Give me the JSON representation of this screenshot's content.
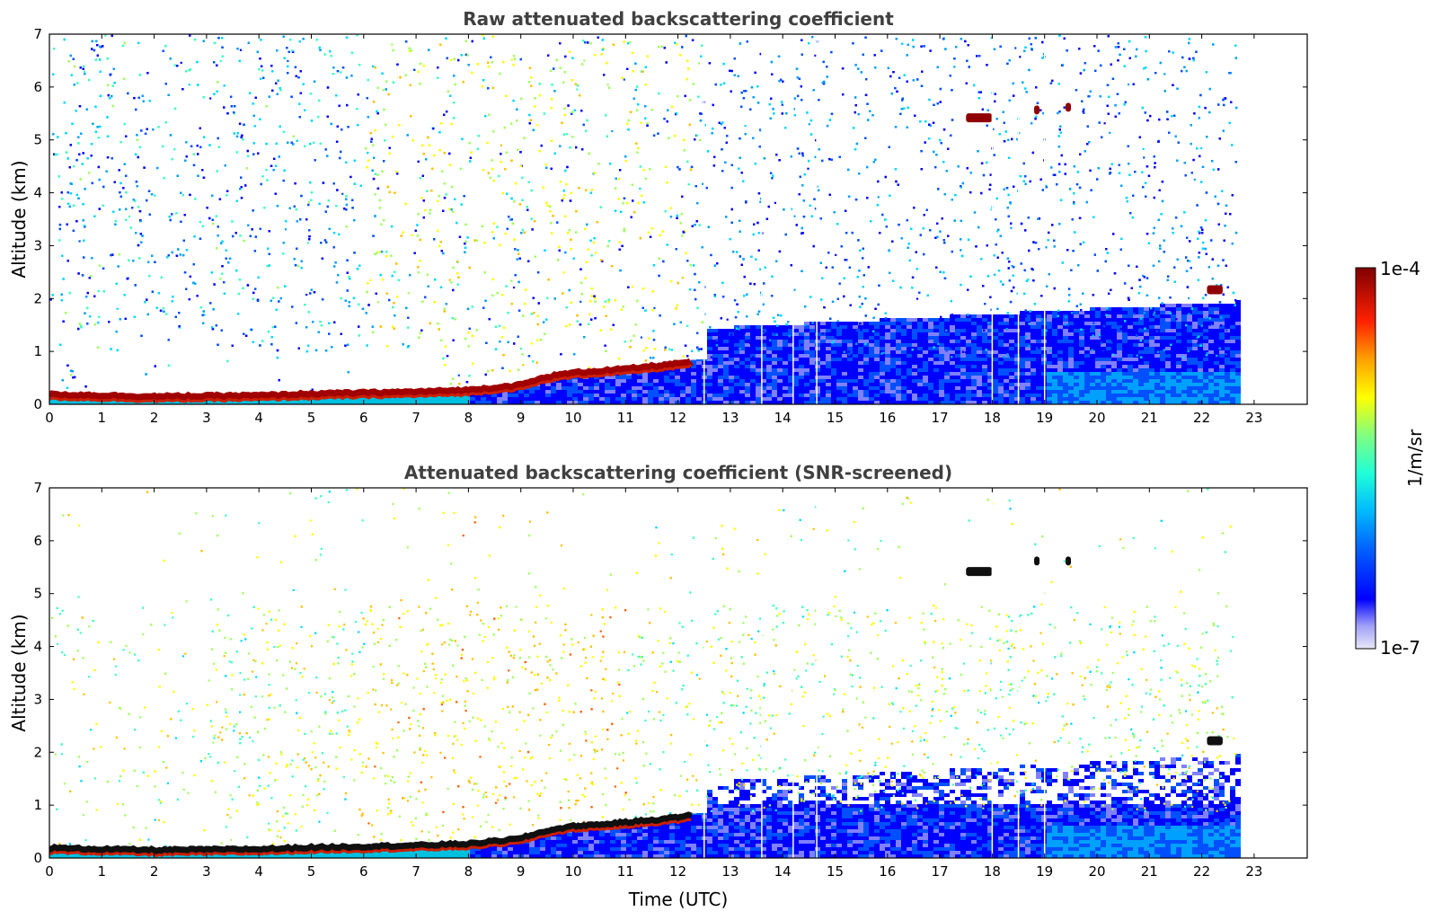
{
  "chart_data": [
    {
      "type": "heatmap",
      "title": "Raw attenuated backscattering coefficient",
      "xlabel": "",
      "ylabel": "Altitude (km)",
      "xlim": [
        0,
        24
      ],
      "ylim": [
        0,
        7
      ],
      "xticks": [
        0,
        1,
        2,
        3,
        4,
        5,
        6,
        7,
        8,
        9,
        10,
        11,
        12,
        13,
        14,
        15,
        16,
        17,
        18,
        19,
        20,
        21,
        22,
        23
      ],
      "yticks": [
        0,
        1,
        2,
        3,
        4,
        5,
        6,
        7
      ],
      "data_end_time": 22.65,
      "boundary_layer_top_km": [
        [
          0,
          0.17
        ],
        [
          1,
          0.15
        ],
        [
          2,
          0.13
        ],
        [
          3,
          0.14
        ],
        [
          4,
          0.15
        ],
        [
          5,
          0.18
        ],
        [
          6,
          0.2
        ],
        [
          7,
          0.22
        ],
        [
          8,
          0.25
        ],
        [
          9,
          0.35
        ],
        [
          9.5,
          0.5
        ],
        [
          10,
          0.58
        ],
        [
          11,
          0.65
        ],
        [
          12,
          0.75
        ],
        [
          12.3,
          0.8
        ]
      ],
      "cloud_patches": [
        {
          "time_start": 17.5,
          "time_end": 18.0,
          "alt_km": 5.4
        },
        {
          "time_start": 18.8,
          "time_end": 18.9,
          "alt_km": 5.55
        },
        {
          "time_start": 19.4,
          "time_end": 19.5,
          "alt_km": 5.6
        },
        {
          "time_start": 22.1,
          "time_end": 22.4,
          "alt_km": 2.15
        }
      ],
      "gap_times": [
        12.5,
        13.6,
        14.2,
        14.65,
        18.0,
        18.5,
        19.0
      ]
    },
    {
      "type": "heatmap",
      "title": "Attenuated backscattering coefficient (SNR-screened)",
      "xlabel": "Time (UTC)",
      "ylabel": "Altitude (km)",
      "xlim": [
        0,
        24
      ],
      "ylim": [
        0,
        7
      ],
      "xticks": [
        0,
        1,
        2,
        3,
        4,
        5,
        6,
        7,
        8,
        9,
        10,
        11,
        12,
        13,
        14,
        15,
        16,
        17,
        18,
        19,
        20,
        21,
        22,
        23
      ],
      "yticks": [
        0,
        1,
        2,
        3,
        4,
        5,
        6,
        7
      ],
      "data_end_time": 22.65,
      "boundary_layer_top_km": [
        [
          0,
          0.17
        ],
        [
          1,
          0.15
        ],
        [
          2,
          0.13
        ],
        [
          3,
          0.14
        ],
        [
          4,
          0.15
        ],
        [
          5,
          0.18
        ],
        [
          6,
          0.2
        ],
        [
          7,
          0.22
        ],
        [
          8,
          0.25
        ],
        [
          9,
          0.35
        ],
        [
          9.5,
          0.5
        ],
        [
          10,
          0.58
        ],
        [
          11,
          0.65
        ],
        [
          12,
          0.75
        ],
        [
          12.3,
          0.8
        ]
      ],
      "cloud_patches": [
        {
          "time_start": 17.5,
          "time_end": 18.0,
          "alt_km": 5.4
        },
        {
          "time_start": 18.8,
          "time_end": 18.9,
          "alt_km": 5.6
        },
        {
          "time_start": 19.4,
          "time_end": 19.5,
          "alt_km": 5.6
        },
        {
          "time_start": 22.1,
          "time_end": 22.4,
          "alt_km": 2.2
        }
      ],
      "gap_times": [
        12.5,
        13.6,
        14.2,
        14.65,
        18.0,
        18.5,
        19.0
      ]
    }
  ],
  "colorbar": {
    "max_label": "1e-4",
    "min_label": "1e-7",
    "unit": "1/m/sr",
    "scale": "log",
    "colors": [
      "#e8e8f8",
      "#b8b8f0",
      "#8080ff",
      "#0000ff",
      "#0050ff",
      "#00a0ff",
      "#00d8ff",
      "#40ffc0",
      "#a0ff60",
      "#ffff00",
      "#ffc000",
      "#ff6000",
      "#ff0000",
      "#b00000",
      "#800000"
    ]
  }
}
